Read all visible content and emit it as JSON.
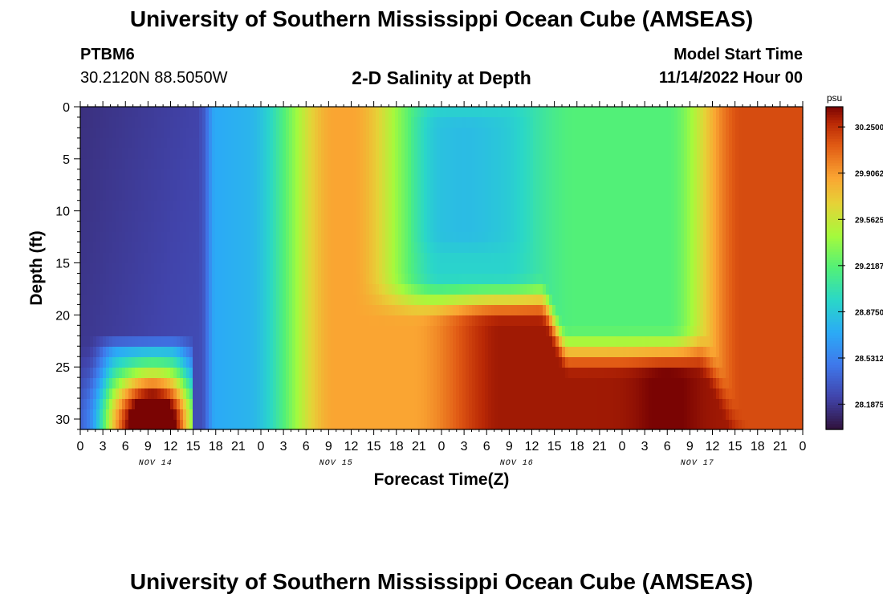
{
  "header": {
    "title": "University of Southern Mississippi Ocean Cube (AMSEAS)",
    "station_id": "PTBM6",
    "coordinates": "30.2120N  88.5050W",
    "plot_title": "2-D Salinity at Depth",
    "model_start_label": "Model Start Time",
    "model_start_value": "11/14/2022 Hour 00"
  },
  "footer": {
    "title": "University of Southern Mississippi Ocean Cube (AMSEAS)"
  },
  "chart_data": {
    "type": "heatmap",
    "xlabel": "Forecast Time(Z)",
    "ylabel": "Depth (ft)",
    "x_range_hours": [
      0,
      96
    ],
    "ylim": [
      0,
      31
    ],
    "y_inverted": true,
    "x_tick_labels": [
      "0",
      "3",
      "6",
      "9",
      "12",
      "15",
      "18",
      "21",
      "0",
      "3",
      "6",
      "9",
      "12",
      "15",
      "18",
      "21",
      "0",
      "3",
      "6",
      "9",
      "12",
      "15",
      "18",
      "21",
      "0",
      "3",
      "6",
      "9",
      "12",
      "15",
      "18",
      "21",
      "0"
    ],
    "y_ticks": [
      0,
      5,
      10,
      15,
      20,
      25,
      30
    ],
    "y_tick_labels": [
      "0",
      "5",
      "10",
      "15",
      "20",
      "25",
      "30"
    ],
    "day_labels": [
      "NOV 14",
      "NOV 15",
      "NOV 16",
      "NOV 17"
    ],
    "colorbar": {
      "unit": "psu",
      "range": [
        28.0,
        30.4
      ],
      "ticks": [
        28.1875,
        28.53125,
        28.875,
        29.21875,
        29.5625,
        29.90625,
        30.25
      ],
      "tick_labels": [
        "28.1875",
        "28.5312",
        "28.8750",
        "29.2187",
        "29.5625",
        "29.9062",
        "30.2500"
      ]
    },
    "grid": false
  }
}
